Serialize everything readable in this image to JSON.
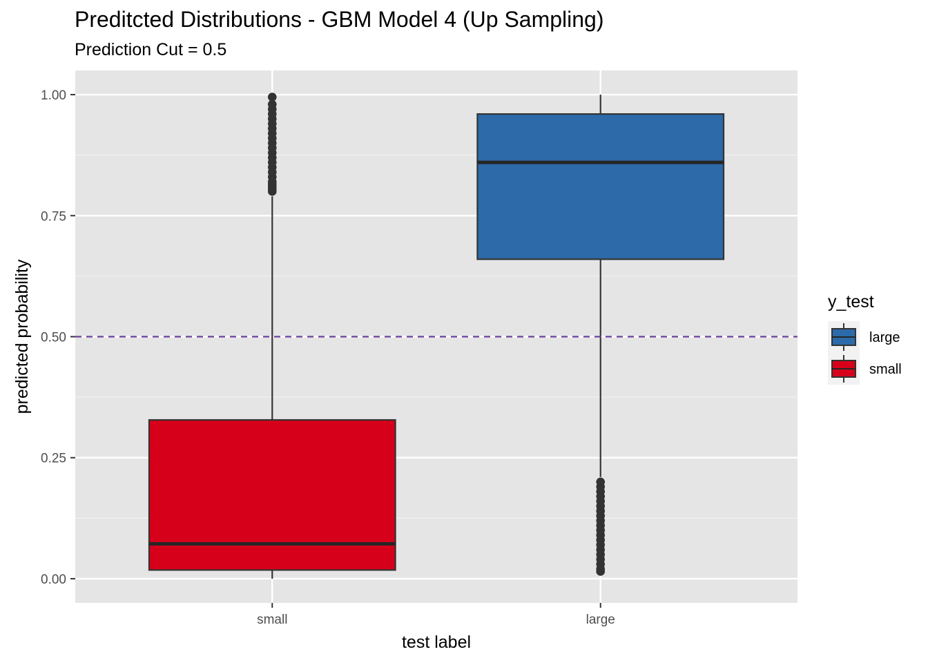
{
  "chart_data": {
    "type": "boxplot",
    "title": "Preditcted Distributions - GBM Model 4 (Up Sampling)",
    "subtitle": "Prediction Cut = 0.5",
    "xlabel": "test label",
    "ylabel": "predicted probability",
    "categories": [
      "small",
      "large"
    ],
    "ylim": [
      -0.05,
      1.05
    ],
    "yticks": [
      0.0,
      0.25,
      0.5,
      0.75,
      1.0
    ],
    "ytick_labels": [
      "0.00",
      "0.25",
      "0.50",
      "0.75",
      "1.00"
    ],
    "grid": true,
    "background": "#e5e5e5",
    "reference_line": {
      "y": 0.5,
      "style": "dashed",
      "color": "#6a3d9a"
    },
    "boxes": [
      {
        "category": "small",
        "group": "small",
        "color": "#d7001a",
        "whisker_low": 0.0,
        "q1": 0.018,
        "median": 0.072,
        "q3": 0.328,
        "whisker_high": 0.79,
        "outliers": [
          0.8,
          0.805,
          0.81,
          0.815,
          0.82,
          0.83,
          0.84,
          0.85,
          0.86,
          0.87,
          0.88,
          0.89,
          0.9,
          0.91,
          0.92,
          0.93,
          0.94,
          0.95,
          0.96,
          0.97,
          0.98,
          0.995
        ]
      },
      {
        "category": "large",
        "group": "large",
        "color": "#2c6aa9",
        "whisker_low": 0.21,
        "q1": 0.66,
        "median": 0.86,
        "q3": 0.96,
        "whisker_high": 1.0,
        "outliers": [
          0.015,
          0.02,
          0.03,
          0.04,
          0.05,
          0.06,
          0.07,
          0.08,
          0.09,
          0.1,
          0.11,
          0.12,
          0.13,
          0.14,
          0.15,
          0.16,
          0.17,
          0.18,
          0.19,
          0.2
        ]
      }
    ],
    "legend": {
      "title": "y_test",
      "position": "right",
      "entries": [
        {
          "label": "large",
          "color": "#2c6aa9"
        },
        {
          "label": "small",
          "color": "#d7001a"
        }
      ]
    }
  }
}
